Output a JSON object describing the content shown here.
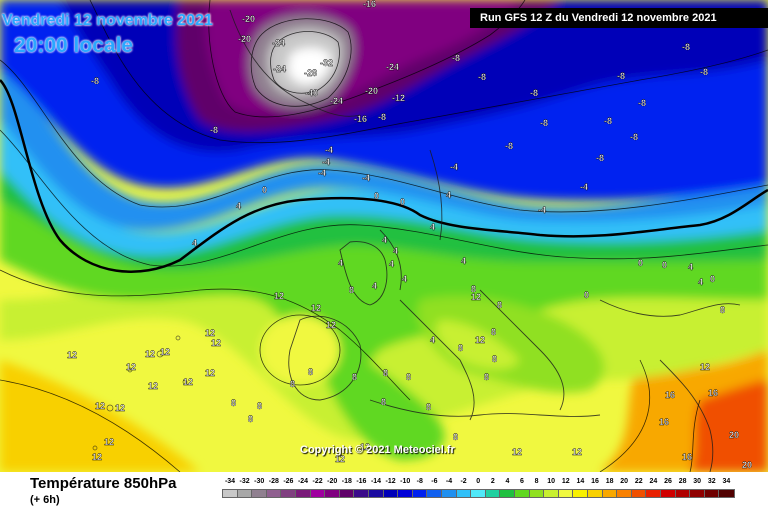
{
  "header": {
    "date_line": "Vendredi 12 novembre 2021",
    "time_line": "20:00 locale",
    "run_banner": "Run GFS 12 Z du Vendredi 12 novembre 2021"
  },
  "footer": {
    "field_title": "Température 850hPa",
    "field_subtitle": "(+ 6h)"
  },
  "copyright": "Copyright © 2021 Meteociel.fr",
  "legend": [
    {
      "label": "-34",
      "color": "#c8c8c8"
    },
    {
      "label": "-32",
      "color": "#a8a8a8"
    },
    {
      "label": "-30",
      "color": "#908090"
    },
    {
      "label": "-28",
      "color": "#906090"
    },
    {
      "label": "-26",
      "color": "#804080"
    },
    {
      "label": "-24",
      "color": "#7a1a7a"
    },
    {
      "label": "-22",
      "color": "#a000a0"
    },
    {
      "label": "-20",
      "color": "#800080"
    },
    {
      "label": "-18",
      "color": "#60006a"
    },
    {
      "label": "-16",
      "color": "#3a0a8a"
    },
    {
      "label": "-14",
      "color": "#1a0aa0"
    },
    {
      "label": "-12",
      "color": "#0000b8"
    },
    {
      "label": "-10",
      "color": "#0000d8"
    },
    {
      "label": "-8",
      "color": "#0020f0"
    },
    {
      "label": "-6",
      "color": "#1060f0"
    },
    {
      "label": "-4",
      "color": "#2090f0"
    },
    {
      "label": "-2",
      "color": "#30c0f8"
    },
    {
      "label": "0",
      "color": "#50e8f8"
    },
    {
      "label": "2",
      "color": "#20d0a0"
    },
    {
      "label": "4",
      "color": "#20c040"
    },
    {
      "label": "6",
      "color": "#60d820"
    },
    {
      "label": "8",
      "color": "#90e020"
    },
    {
      "label": "10",
      "color": "#c8f030"
    },
    {
      "label": "12",
      "color": "#f0f840"
    },
    {
      "label": "14",
      "color": "#f8f000"
    },
    {
      "label": "16",
      "color": "#f8d000"
    },
    {
      "label": "18",
      "color": "#f8a800"
    },
    {
      "label": "20",
      "color": "#f88000"
    },
    {
      "label": "22",
      "color": "#f05000"
    },
    {
      "label": "24",
      "color": "#e82000"
    },
    {
      "label": "26",
      "color": "#d00000"
    },
    {
      "label": "28",
      "color": "#b00000"
    },
    {
      "label": "30",
      "color": "#900000"
    },
    {
      "label": "32",
      "color": "#700000"
    },
    {
      "label": "34",
      "color": "#500000"
    }
  ],
  "isotherm_labels": [
    {
      "text": "-20",
      "color": "#ffffff"
    },
    {
      "text": "-24",
      "color": "#ffffff"
    },
    {
      "text": "-16",
      "color": "#ffffff"
    },
    {
      "text": "-20",
      "color": "#ffffff"
    },
    {
      "text": "-24",
      "color": "#ffffff"
    },
    {
      "text": "-32",
      "color": "#ffffff"
    },
    {
      "text": "-28",
      "color": "#ffffff"
    },
    {
      "text": "-40",
      "color": "#ffffff"
    },
    {
      "text": "-24",
      "color": "#ffffff"
    },
    {
      "text": "-24",
      "color": "#ffffff"
    },
    {
      "text": "-20",
      "color": "#ffffff"
    },
    {
      "text": "-12",
      "color": "#ffffff"
    },
    {
      "text": "-16",
      "color": "#ffffff"
    },
    {
      "text": "-8",
      "color": "#ffffff"
    },
    {
      "text": "-8",
      "color": "#ffffff"
    },
    {
      "text": "-8",
      "color": "#ffffff"
    },
    {
      "text": "-8",
      "color": "#ffffff"
    },
    {
      "text": "-8",
      "color": "#ffffff"
    },
    {
      "text": "-8",
      "color": "#ffffff"
    },
    {
      "text": "-8",
      "color": "#ffffff"
    },
    {
      "text": "-8",
      "color": "#ffffff"
    },
    {
      "text": "-8",
      "color": "#ffffff"
    },
    {
      "text": "-8",
      "color": "#ffffff"
    },
    {
      "text": "-8",
      "color": "#ffffff"
    },
    {
      "text": "-8",
      "color": "#ffffff"
    },
    {
      "text": "-8",
      "color": "#ffffff"
    },
    {
      "text": "-4",
      "color": "#ffffff"
    },
    {
      "text": "-4",
      "color": "#ffffff"
    },
    {
      "text": "-4",
      "color": "#ffffff"
    },
    {
      "text": "-4",
      "color": "#ffffff"
    },
    {
      "text": "-4",
      "color": "#ffffff"
    },
    {
      "text": "-4",
      "color": "#ffffff"
    },
    {
      "text": "-4",
      "color": "#ffffff"
    },
    {
      "text": "-8",
      "color": "#ffffff"
    },
    {
      "text": "-8",
      "color": "#ffffff"
    },
    {
      "text": "0",
      "color": "#ffffff"
    },
    {
      "text": "0",
      "color": "#ffffff"
    },
    {
      "text": "0",
      "color": "#ffffff"
    },
    {
      "text": "4",
      "color": "#ffffff"
    },
    {
      "text": "4",
      "color": "#ffffff"
    },
    {
      "text": "4",
      "color": "#ffffff"
    },
    {
      "text": "4",
      "color": "#ffffff"
    },
    {
      "text": "8",
      "color": "#ffffff"
    },
    {
      "text": "4",
      "color": "#ffffff"
    },
    {
      "text": "4",
      "color": "#ffffff"
    },
    {
      "text": "4",
      "color": "#ffffff"
    },
    {
      "text": "4",
      "color": "#ffffff"
    },
    {
      "text": "4",
      "color": "#ffffff"
    },
    {
      "text": "4",
      "color": "#ffffff"
    },
    {
      "text": "4",
      "color": "#ffffff"
    },
    {
      "text": "8",
      "color": "#ffffff"
    },
    {
      "text": "8",
      "color": "#ffffff"
    },
    {
      "text": "12",
      "color": "#ffffff"
    },
    {
      "text": "12",
      "color": "#ffffff"
    },
    {
      "text": "12",
      "color": "#ffffff"
    },
    {
      "text": "12",
      "color": "#ffffff"
    },
    {
      "text": "12",
      "color": "#ffffff"
    },
    {
      "text": "12",
      "color": "#ffffff"
    },
    {
      "text": "12",
      "color": "#ffffff"
    },
    {
      "text": "12",
      "color": "#ffffff"
    },
    {
      "text": "12",
      "color": "#ffffff"
    },
    {
      "text": "12",
      "color": "#ffffff"
    },
    {
      "text": "12",
      "color": "#ffffff"
    },
    {
      "text": "12",
      "color": "#ffffff"
    },
    {
      "text": "12",
      "color": "#ffffff"
    },
    {
      "text": "12",
      "color": "#ffffff"
    },
    {
      "text": "12",
      "color": "#ffffff"
    },
    {
      "text": "12",
      "color": "#ffffff"
    },
    {
      "text": "12",
      "color": "#ffffff"
    },
    {
      "text": "8",
      "color": "#ffffff"
    },
    {
      "text": "8",
      "color": "#ffffff"
    },
    {
      "text": "8",
      "color": "#ffffff"
    },
    {
      "text": "8",
      "color": "#ffffff"
    },
    {
      "text": "8",
      "color": "#ffffff"
    },
    {
      "text": "8",
      "color": "#ffffff"
    },
    {
      "text": "8",
      "color": "#ffffff"
    },
    {
      "text": "8",
      "color": "#ffffff"
    },
    {
      "text": "8",
      "color": "#ffffff"
    },
    {
      "text": "8",
      "color": "#ffffff"
    },
    {
      "text": "8",
      "color": "#ffffff"
    },
    {
      "text": "8",
      "color": "#ffffff"
    },
    {
      "text": "8",
      "color": "#ffffff"
    },
    {
      "text": "8",
      "color": "#ffffff"
    },
    {
      "text": "12",
      "color": "#ffffff"
    },
    {
      "text": "12",
      "color": "#ffffff"
    },
    {
      "text": "12",
      "color": "#ffffff"
    },
    {
      "text": "12",
      "color": "#ffffff"
    },
    {
      "text": "16",
      "color": "#ffffff"
    },
    {
      "text": "16",
      "color": "#ffffff"
    },
    {
      "text": "16",
      "color": "#ffffff"
    },
    {
      "text": "16",
      "color": "#ffffff"
    },
    {
      "text": "20",
      "color": "#ffffff"
    },
    {
      "text": "20",
      "color": "#ffffff"
    },
    {
      "text": "12",
      "color": "#ffffff"
    },
    {
      "text": "8",
      "color": "#ffffff"
    },
    {
      "text": "4",
      "color": "#ffffff"
    },
    {
      "text": "0",
      "color": "#ffffff"
    },
    {
      "text": "0",
      "color": "#ffffff"
    },
    {
      "text": "4",
      "color": "#ffffff"
    },
    {
      "text": "4",
      "color": "#ffffff"
    },
    {
      "text": "0",
      "color": "#ffffff"
    },
    {
      "text": "0",
      "color": "#ffffff"
    },
    {
      "text": "8",
      "color": "#ffffff"
    },
    {
      "text": "12",
      "color": "#ffffff"
    },
    {
      "text": "12",
      "color": "#ffffff"
    }
  ]
}
